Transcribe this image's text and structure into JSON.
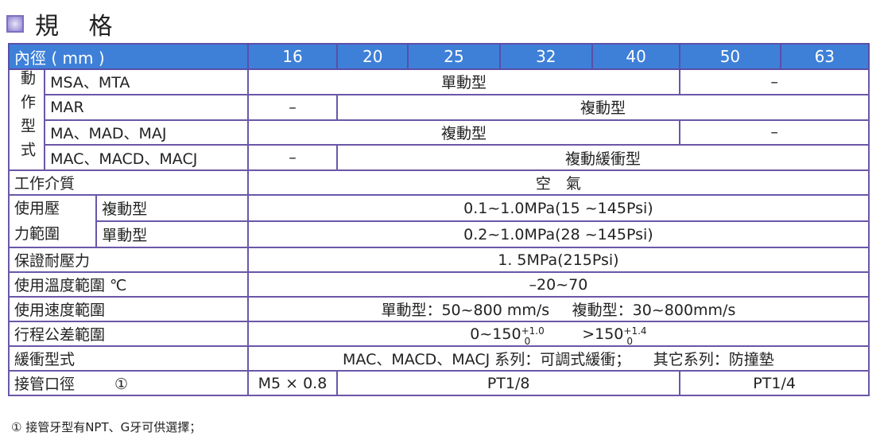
{
  "title": "規 格",
  "header": {
    "label": "內徑 ( mm )",
    "bores": [
      "16",
      "20",
      "25",
      "32",
      "40",
      "50",
      "63"
    ]
  },
  "action": {
    "group": "動作型式",
    "group_chars": [
      "動",
      "作",
      "型",
      "式"
    ],
    "rows": [
      {
        "name": "MSA、MTA",
        "cells": [
          "單動型",
          "–"
        ]
      },
      {
        "name": "MAR",
        "cells": [
          "–",
          "複動型"
        ]
      },
      {
        "name": "MA、MAD、MAJ",
        "cells": [
          "複動型",
          "–"
        ]
      },
      {
        "name": "MAC、MACD、MACJ",
        "cells": [
          "–",
          "複動緩衝型"
        ]
      }
    ]
  },
  "medium": {
    "label": "工作介質",
    "value": "空　氣"
  },
  "pressure": {
    "label": "使用壓力範圍",
    "label_lines": [
      "使用壓",
      "力範圍"
    ],
    "rows": [
      {
        "name": "複動型",
        "value": "0.1~1.0MPa(15 ~145Psi)"
      },
      {
        "name": "單動型",
        "value": "0.2~1.0MPa(28 ~145Psi)"
      }
    ]
  },
  "proof": {
    "label": "保證耐壓力",
    "value": "1. 5MPa(215Psi)"
  },
  "temp": {
    "label": "使用溫度範圍 ℃",
    "value": "–20~70"
  },
  "speed": {
    "label": "使用速度範圍",
    "value1": "單動型：50~800 mm/s",
    "value2": "複動型：30~800mm/s"
  },
  "stroke": {
    "label": "行程公差範圍",
    "a_base": "0~150",
    "a_up": "+1.0",
    "a_lo": "0",
    "b_base": ">150",
    "b_up": "+1.4",
    "b_lo": "0"
  },
  "cushion": {
    "label": "緩衝型式",
    "value1": "MAC、MACD、MACJ 系列：可調式緩衝；",
    "value2": "其它系列：防撞墊"
  },
  "port": {
    "label": "接管口徑",
    "mark": "①",
    "cells": [
      "M5 × 0.8",
      "PT1/8",
      "PT1/4"
    ]
  },
  "footnote": "① 接管牙型有NPT、G牙可供選擇；",
  "colors": {
    "header_bg": "#3e80d8",
    "grid": "#6a57a8"
  }
}
